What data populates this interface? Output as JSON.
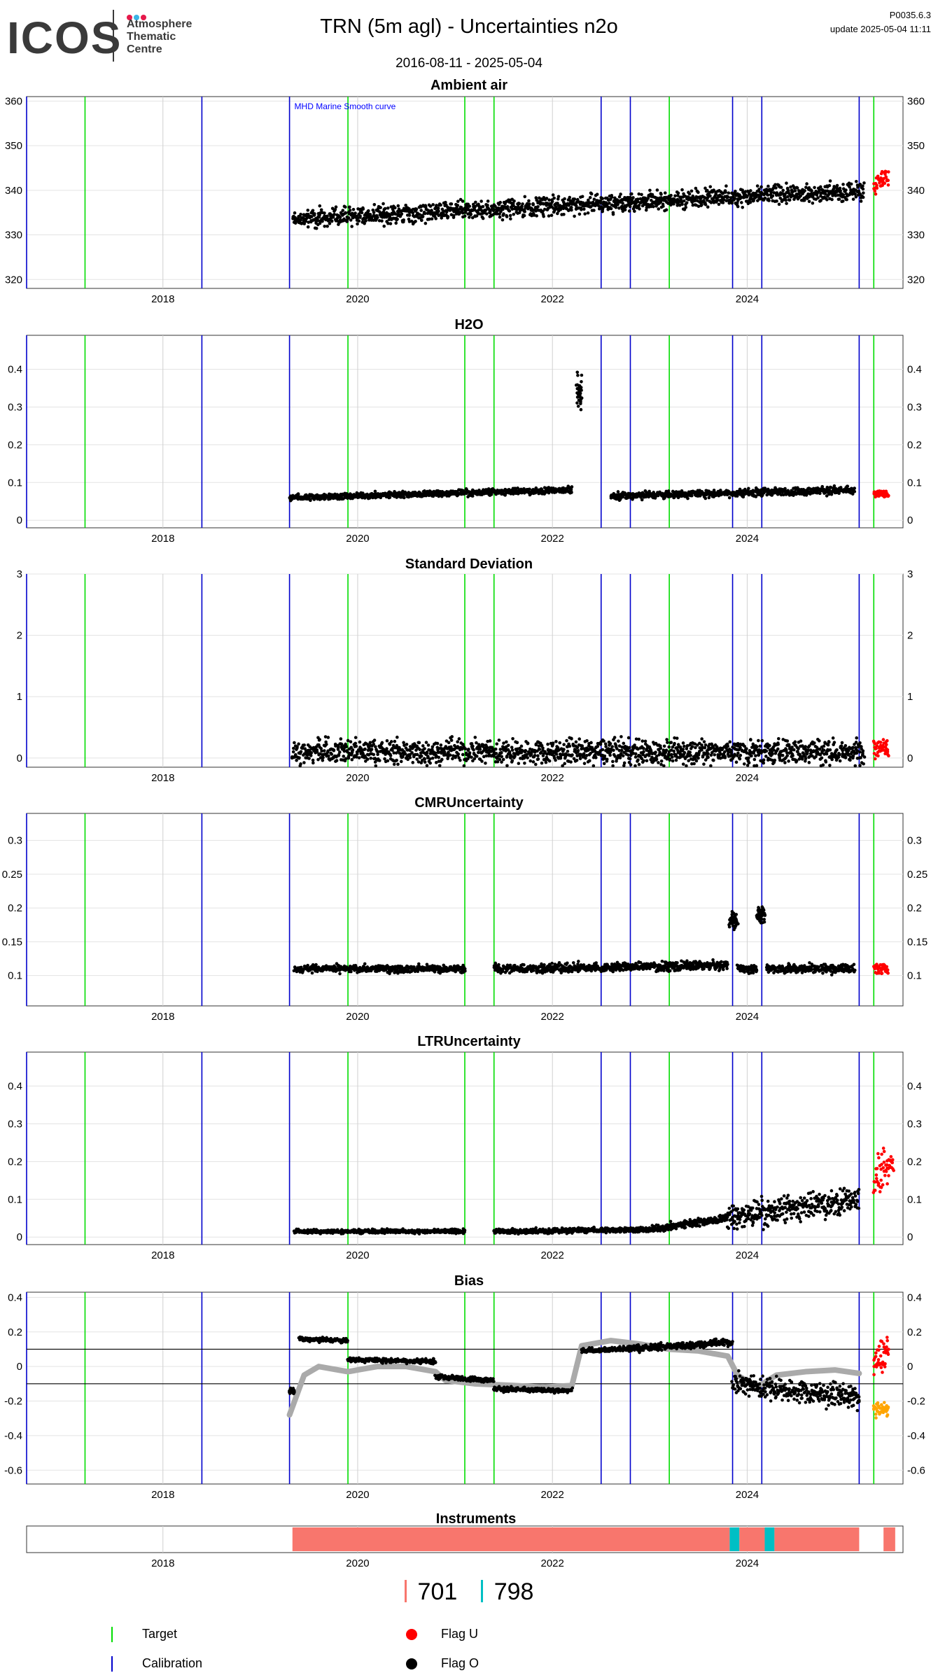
{
  "header": {
    "logo_word": "ICOS",
    "logo_lines": [
      "Atmosphere",
      "Thematic",
      "Centre"
    ],
    "logo_dot_colors": [
      "#e6194b",
      "#3cb4e6",
      "#e6194b"
    ],
    "title": "TRN  (5m agl) - Uncertainties n2o",
    "date_range": "2016-08-11 - 2025-05-04",
    "version": "P0035.6.3",
    "update": "update  2025-05-04 11:11"
  },
  "colors": {
    "target": "#00dd00",
    "calibration": "#0000cc",
    "flag_u": "#ff0000",
    "flag_o": "#000000",
    "smooth": "#aaaaaa",
    "inst_701": "#f8766d",
    "inst_798": "#00bfc4",
    "orange": "#ffa500"
  },
  "chart_data": {
    "type": "scatter",
    "x_range": [
      2016.6,
      2025.6
    ],
    "x_ticks": [
      "2018",
      "2020",
      "2022",
      "2024"
    ],
    "target_lines": [
      2017.2,
      2019.9,
      2021.1,
      2021.4,
      2023.2,
      2025.3
    ],
    "calibration_lines": [
      2016.6,
      2018.4,
      2019.3,
      2022.5,
      2022.8,
      2023.85,
      2024.15,
      2025.15
    ],
    "annotation": "MHD Marine Smooth curve",
    "panels": [
      {
        "title": "Ambient air",
        "ylim": [
          318,
          361
        ],
        "yticks": [
          320,
          330,
          340,
          350,
          360
        ],
        "series": [
          {
            "name": "Flag O",
            "segments": [
              {
                "x": [
                  2019.33,
                  2025.2
                ],
                "y": [
                  333.5,
                  340
                ],
                "spread": 3
              }
            ]
          },
          {
            "name": "Flag U",
            "segments": [
              {
                "x": [
                  2025.3,
                  2025.45
                ],
                "y": [
                  341,
                  343
                ],
                "spread": 3
              }
            ]
          }
        ]
      },
      {
        "title": "H2O",
        "ylim": [
          -0.02,
          0.49
        ],
        "yticks": [
          0.0,
          0.1,
          0.2,
          0.3,
          0.4
        ],
        "series": [
          {
            "name": "Flag O",
            "segments": [
              {
                "x": [
                  2019.3,
                  2022.2
                ],
                "y": [
                  0.06,
                  0.08
                ],
                "spread": 0.012
              },
              {
                "x": [
                  2022.25,
                  2022.3
                ],
                "y": [
                  0.34,
                  0.34
                ],
                "spread": 0.06
              },
              {
                "x": [
                  2022.6,
                  2025.1
                ],
                "y": [
                  0.065,
                  0.08
                ],
                "spread": 0.015
              }
            ]
          },
          {
            "name": "Flag U",
            "segments": [
              {
                "x": [
                  2025.3,
                  2025.45
                ],
                "y": [
                  0.07,
                  0.07
                ],
                "spread": 0.015
              }
            ]
          }
        ]
      },
      {
        "title": "Standard Deviation",
        "ylim": [
          -0.15,
          3.0
        ],
        "yticks": [
          0,
          1,
          2,
          3
        ],
        "series": [
          {
            "name": "Flag O",
            "segments": [
              {
                "x": [
                  2019.33,
                  2025.2
                ],
                "y": [
                  0.1,
                  0.1
                ],
                "spread": 0.3
              }
            ]
          },
          {
            "name": "Flag U",
            "segments": [
              {
                "x": [
                  2025.3,
                  2025.45
                ],
                "y": [
                  0.2,
                  0.2
                ],
                "spread": 0.25
              }
            ]
          }
        ]
      },
      {
        "title": "CMRUncertainty",
        "ylim": [
          0.055,
          0.34
        ],
        "yticks": [
          0.1,
          0.15,
          0.2,
          0.25,
          0.3
        ],
        "series": [
          {
            "name": "Flag O",
            "segments": [
              {
                "x": [
                  2019.35,
                  2021.1
                ],
                "y": [
                  0.11,
                  0.11
                ],
                "spread": 0.008
              },
              {
                "x": [
                  2021.4,
                  2023.8
                ],
                "y": [
                  0.11,
                  0.115
                ],
                "spread": 0.01
              },
              {
                "x": [
                  2023.82,
                  2023.9
                ],
                "y": [
                  0.18,
                  0.18
                ],
                "spread": 0.02
              },
              {
                "x": [
                  2023.9,
                  2024.1
                ],
                "y": [
                  0.11,
                  0.11
                ],
                "spread": 0.01
              },
              {
                "x": [
                  2024.1,
                  2024.18
                ],
                "y": [
                  0.19,
                  0.19
                ],
                "spread": 0.02
              },
              {
                "x": [
                  2024.2,
                  2025.1
                ],
                "y": [
                  0.11,
                  0.11
                ],
                "spread": 0.01
              }
            ]
          },
          {
            "name": "Flag U",
            "segments": [
              {
                "x": [
                  2025.3,
                  2025.45
                ],
                "y": [
                  0.11,
                  0.11
                ],
                "spread": 0.01
              }
            ]
          }
        ]
      },
      {
        "title": "LTRUncertainty",
        "ylim": [
          -0.02,
          0.49
        ],
        "yticks": [
          0.0,
          0.1,
          0.2,
          0.3,
          0.4
        ],
        "series": [
          {
            "name": "Flag O",
            "segments": [
              {
                "x": [
                  2019.35,
                  2021.1
                ],
                "y": [
                  0.015,
                  0.015
                ],
                "spread": 0.008
              },
              {
                "x": [
                  2021.4,
                  2023.0
                ],
                "y": [
                  0.015,
                  0.02
                ],
                "spread": 0.01
              },
              {
                "x": [
                  2023.0,
                  2023.8
                ],
                "y": [
                  0.02,
                  0.05
                ],
                "spread": 0.015
              },
              {
                "x": [
                  2023.8,
                  2025.15
                ],
                "y": [
                  0.05,
                  0.1
                ],
                "spread": 0.05
              }
            ]
          },
          {
            "name": "Flag U",
            "segments": [
              {
                "x": [
                  2025.3,
                  2025.5
                ],
                "y": [
                  0.15,
                  0.2
                ],
                "spread": 0.07
              }
            ]
          }
        ]
      },
      {
        "title": "Bias",
        "ylim": [
          -0.68,
          0.43
        ],
        "yticks": [
          -0.6,
          -0.4,
          -0.2,
          0.0,
          0.2,
          0.4
        ],
        "hlines": [
          0.1,
          -0.1
        ],
        "series": [
          {
            "name": "Flag O",
            "segments": [
              {
                "x": [
                  2019.3,
                  2019.35
                ],
                "y": [
                  -0.14,
                  -0.14
                ],
                "spread": 0.02
              },
              {
                "x": [
                  2019.4,
                  2019.9
                ],
                "y": [
                  0.16,
                  0.15
                ],
                "spread": 0.02
              },
              {
                "x": [
                  2019.9,
                  2020.8
                ],
                "y": [
                  0.04,
                  0.03
                ],
                "spread": 0.02
              },
              {
                "x": [
                  2020.8,
                  2021.4
                ],
                "y": [
                  -0.06,
                  -0.08
                ],
                "spread": 0.02
              },
              {
                "x": [
                  2021.4,
                  2022.2
                ],
                "y": [
                  -0.13,
                  -0.14
                ],
                "spread": 0.02
              },
              {
                "x": [
                  2022.3,
                  2022.7
                ],
                "y": [
                  0.09,
                  0.1
                ],
                "spread": 0.02
              },
              {
                "x": [
                  2022.7,
                  2023.85
                ],
                "y": [
                  0.1,
                  0.14
                ],
                "spread": 0.03
              },
              {
                "x": [
                  2023.85,
                  2025.15
                ],
                "y": [
                  -0.1,
                  -0.18
                ],
                "spread": 0.1
              }
            ]
          },
          {
            "name": "Flag U",
            "segments": [
              {
                "x": [
                  2025.3,
                  2025.45
                ],
                "y": [
                  0.0,
                  0.1
                ],
                "spread": 0.15
              }
            ]
          },
          {
            "name": "Orange",
            "segments": [
              {
                "x": [
                  2025.3,
                  2025.45
                ],
                "y": [
                  -0.25,
                  -0.25
                ],
                "spread": 0.05
              }
            ]
          }
        ],
        "smooth_curve": {
          "x": [
            2019.3,
            2019.45,
            2019.6,
            2019.9,
            2020.2,
            2020.5,
            2020.8,
            2020.9,
            2021.2,
            2021.6,
            2021.9,
            2022.2,
            2022.3,
            2022.6,
            2022.9,
            2023.2,
            2023.5,
            2023.8,
            2023.9,
            2024.1,
            2024.3,
            2024.6,
            2024.9,
            2025.15
          ],
          "y": [
            -0.28,
            -0.05,
            0.0,
            -0.03,
            0.0,
            0.0,
            -0.03,
            -0.08,
            -0.1,
            -0.11,
            -0.12,
            -0.11,
            0.12,
            0.15,
            0.13,
            0.1,
            0.09,
            0.06,
            -0.05,
            -0.12,
            -0.05,
            -0.03,
            -0.02,
            -0.04
          ]
        }
      }
    ],
    "instruments": {
      "title": "Instruments",
      "bars": [
        {
          "id": "701",
          "from": 2019.33,
          "to": 2023.82
        },
        {
          "id": "798",
          "from": 2023.82,
          "to": 2023.92
        },
        {
          "id": "701",
          "from": 2023.92,
          "to": 2024.18
        },
        {
          "id": "798",
          "from": 2024.18,
          "to": 2024.28
        },
        {
          "id": "701",
          "from": 2024.28,
          "to": 2025.15
        },
        {
          "id": "701",
          "from": 2025.4,
          "to": 2025.52
        }
      ]
    }
  },
  "instrument_legend": {
    "items": [
      {
        "label": "701",
        "color": "#f8766d"
      },
      {
        "label": "798",
        "color": "#00bfc4"
      }
    ]
  },
  "legend": {
    "target": "Target",
    "calibration": "Calibration",
    "flag_u": "Flag U",
    "flag_o": "Flag O"
  }
}
